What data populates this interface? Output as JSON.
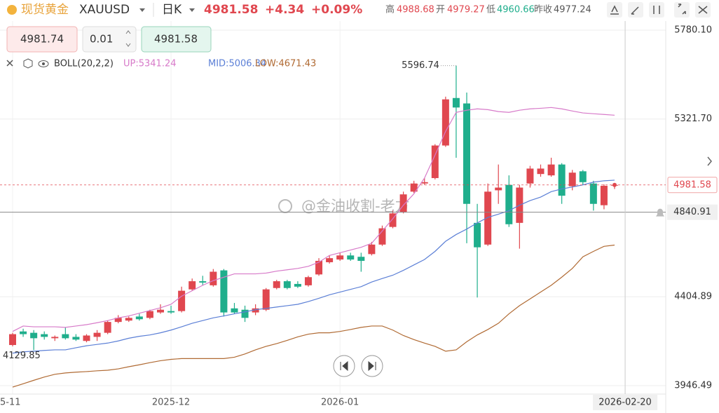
{
  "header": {
    "name": "现货黄金",
    "symbol": "XAUUSD",
    "period": "日K",
    "change": "+4.34",
    "change_pct": "+0.09%",
    "high_label": "高",
    "open_label": "开",
    "low_label": "低",
    "prev_label": "昨收"
  },
  "order": {
    "sell": "4981.74",
    "qty": "0.01"
  },
  "watermark": "@金油收割-老方",
  "chart_data": {
    "type": "candlestick",
    "up_color": "#e0474f",
    "down_color": "#1fae8c",
    "categories": [
      "5-11",
      null,
      null,
      null,
      null,
      null,
      null,
      null,
      null,
      null,
      null,
      null,
      null,
      null,
      null,
      "2025-12",
      null,
      null,
      null,
      null,
      null,
      null,
      null,
      null,
      null,
      null,
      null,
      null,
      null,
      null,
      null,
      "2026-01",
      null,
      null,
      null,
      null,
      null,
      null,
      null,
      null,
      null,
      null,
      null,
      null,
      null,
      null,
      null,
      null,
      null,
      null,
      null,
      null,
      null,
      null,
      null,
      null,
      null,
      null
    ],
    "open": [
      4156,
      4226,
      4219,
      4212,
      4191,
      4212,
      4198,
      4177,
      4198,
      4219,
      4275,
      4282,
      4303,
      4296,
      4324,
      4331,
      4331,
      4443,
      4485,
      4464,
      4541,
      4345,
      4338,
      4324,
      4338,
      4450,
      4485,
      4471,
      4464,
      4520,
      4583,
      4597,
      4618,
      4611,
      4625,
      4674,
      4765,
      4842,
      4947,
      4989,
      5017,
      5185,
      5430,
      5402,
      4786,
      4674,
      4954,
      4982,
      4786,
      4989,
      5038,
      5031,
      5087,
      4975,
      5052,
      4989,
      4877,
      4979.27
    ],
    "high": [
      4219,
      4240,
      4233,
      4226,
      4205,
      4247,
      4212,
      4212,
      4233,
      4282,
      4310,
      4303,
      4317,
      4338,
      4366,
      4359,
      4457,
      4499,
      4513,
      4548,
      4548,
      4373,
      4359,
      4366,
      4450,
      4492,
      4492,
      4485,
      4513,
      4604,
      4618,
      4632,
      4632,
      4632,
      4688,
      4772,
      4849,
      4947,
      5003,
      5017,
      5192,
      5437,
      5596.74,
      5458,
      4884,
      4989,
      5087,
      5031,
      4982,
      5080,
      5087,
      5122,
      5094,
      5059,
      5059,
      5003,
      4985,
      4988.68
    ],
    "low": [
      4149,
      4198,
      4129.85,
      4184,
      4177,
      4184,
      4177,
      4170,
      4177,
      4212,
      4268,
      4275,
      4282,
      4289,
      4317,
      4317,
      4324,
      4436,
      4464,
      4457,
      4303,
      4317,
      4275,
      4310,
      4331,
      4443,
      4443,
      4450,
      4457,
      4513,
      4576,
      4590,
      4590,
      4534,
      4618,
      4667,
      4758,
      4835,
      4940,
      4982,
      5010,
      5178,
      5122,
      4681,
      4401,
      4667,
      4884,
      4765,
      4653,
      4968,
      5024,
      5024,
      4884,
      4954,
      4982,
      4849,
      4856,
      4960.66
    ],
    "close": [
      4212,
      4212,
      4191,
      4198,
      4198,
      4191,
      4184,
      4205,
      4219,
      4275,
      4296,
      4296,
      4289,
      4331,
      4338,
      4324,
      4436,
      4485,
      4478,
      4534,
      4324,
      4324,
      4296,
      4345,
      4443,
      4485,
      4450,
      4457,
      4506,
      4590,
      4604,
      4618,
      4597,
      4590,
      4674,
      4758,
      4835,
      4933,
      4989,
      4996,
      5185,
      5423,
      5381,
      4884,
      4660,
      4947,
      4968,
      4779,
      4968,
      5066,
      5066,
      5087,
      4926,
      5045,
      4996,
      4884,
      4977.24,
      4981.58
    ],
    "indicator": {
      "name": "BOLL(20,2,2)",
      "series": [
        {
          "name": "UP:5341.24",
          "color": "#d77ac9",
          "values": [
            4226,
            4254,
            4250,
            4250,
            4250,
            4247,
            4254,
            4261,
            4271,
            4282,
            4296,
            4306,
            4320,
            4334,
            4348,
            4366,
            4408,
            4436,
            4464,
            4488,
            4506,
            4523,
            4523,
            4523,
            4527,
            4537,
            4544,
            4551,
            4562,
            4583,
            4618,
            4632,
            4646,
            4660,
            4681,
            4744,
            4807,
            4877,
            4936,
            5017,
            5136,
            5258,
            5356,
            5367,
            5374,
            5370,
            5360,
            5356,
            5367,
            5374,
            5377,
            5381,
            5374,
            5363,
            5353,
            5349,
            5345,
            5341.24
          ]
        },
        {
          "name": "MID:5006.34",
          "color": "#5b7fd6",
          "values": [
            4114,
            4121,
            4124,
            4128,
            4131,
            4131,
            4142,
            4152,
            4159,
            4166,
            4177,
            4191,
            4201,
            4208,
            4219,
            4233,
            4250,
            4268,
            4282,
            4296,
            4306,
            4317,
            4327,
            4338,
            4345,
            4352,
            4359,
            4366,
            4380,
            4397,
            4415,
            4429,
            4443,
            4457,
            4481,
            4499,
            4516,
            4541,
            4569,
            4597,
            4639,
            4691,
            4726,
            4754,
            4786,
            4814,
            4831,
            4849,
            4877,
            4901,
            4919,
            4947,
            4961,
            4971,
            4982,
            4996,
            5003,
            5006.34
          ]
        },
        {
          "name": "LOW:4671.43",
          "color": "#b06a33",
          "values": [
            3939,
            3956,
            3974,
            3991,
            4005,
            4012,
            4016,
            4019,
            4023,
            4026,
            4033,
            4044,
            4054,
            4065,
            4075,
            4082,
            4086,
            4086,
            4086,
            4086,
            4086,
            4093,
            4110,
            4131,
            4149,
            4163,
            4180,
            4198,
            4212,
            4219,
            4219,
            4226,
            4236,
            4247,
            4254,
            4254,
            4233,
            4205,
            4184,
            4166,
            4149,
            4124,
            4131,
            4173,
            4208,
            4236,
            4268,
            4317,
            4359,
            4394,
            4429,
            4464,
            4506,
            4551,
            4611,
            4639,
            4665,
            4671.43
          ]
        }
      ]
    },
    "ylim": [
      3903,
      5827
    ],
    "yticks": [
      {
        "value": 5780.1,
        "label": "5780.10"
      },
      {
        "value": 5321.7,
        "label": "5321.70"
      },
      4404.89,
      3946.49
    ],
    "grid": true,
    "crosshair": {
      "value": 4840.91,
      "date": "2026-02-20"
    }
  }
}
